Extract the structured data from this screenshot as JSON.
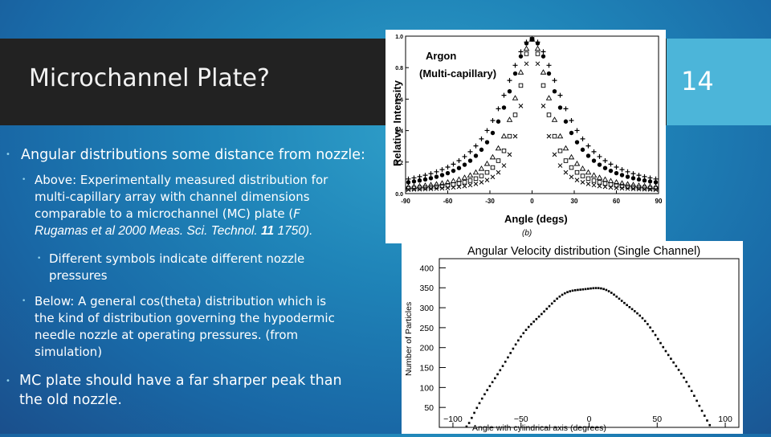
{
  "slide": {
    "title": "Microchannel Plate?",
    "page_number": "14"
  },
  "bullets": {
    "b1": "Angular distributions some distance from nozzle:",
    "b1_1_l1": "Above: Experimentally measured distribution for",
    "b1_1_l2": "multi-capillary array with channel dimensions",
    "b1_1_l3": "comparable to a microchannel (MC) plate (",
    "b1_1_l3_italic": "F",
    "b1_1_l4_italic": "Rugamas et al 2000 Meas. Sci. Technol.",
    "b1_1_l4_bold": "11",
    "b1_1_l4_tail": "1750).",
    "b1_1_1_l1": "Different symbols indicate different nozzle",
    "b1_1_1_l2": "pressures",
    "b1_2_l1": "Below: A general cos(theta) distribution which is",
    "b1_2_l2": "the kind of distribution governing the hypodermic",
    "b1_2_l3": "needle nozzle at operating pressures. (from",
    "b1_2_l4": "simulation)",
    "b2_l1": "MC plate should have a far sharper peak than",
    "b2_l2": "the old nozzle."
  },
  "colors": {
    "title_band": "#222222",
    "page_box": "#4cb5d9",
    "bullet": "#8fd0ea"
  },
  "chart_data": [
    {
      "type": "scatter",
      "annotation_line1": "Argon",
      "annotation_line2": "(Multi-capillary)",
      "xlabel": "Angle (degs)",
      "ylabel": "Relative Intensity",
      "panel_label": "(b)",
      "xlim": [
        -90,
        90
      ],
      "ylim": [
        0,
        1.0
      ],
      "x_ticks": [
        "-90",
        "-60",
        "-30",
        "0",
        "30",
        "60",
        "90"
      ],
      "y_ticks": [
        "0.0",
        "0.2",
        "0.4",
        "0.6",
        "0.8",
        "1.0"
      ],
      "series": [
        {
          "symbol": "plus",
          "width": 26
        },
        {
          "symbol": "filled-circle",
          "width": 22
        },
        {
          "symbol": "triangle",
          "width": 15
        },
        {
          "symbol": "square",
          "width": 12
        },
        {
          "symbol": "cross",
          "width": 9
        }
      ]
    },
    {
      "type": "scatter",
      "title": "Angular Velocity distribution (Single Channel)",
      "xlabel": "Angle with cylindrical axis (degrees)",
      "ylabel": "Number of Particles",
      "xlim": [
        -100,
        100
      ],
      "ylim": [
        0,
        400
      ],
      "x_ticks": [
        "−100",
        "−50",
        "0",
        "50",
        "100"
      ],
      "y_ticks": [
        "50",
        "100",
        "150",
        "200",
        "250",
        "300",
        "350",
        "400"
      ],
      "peak": 350,
      "series": [
        {
          "symbol": "dot"
        }
      ]
    }
  ]
}
